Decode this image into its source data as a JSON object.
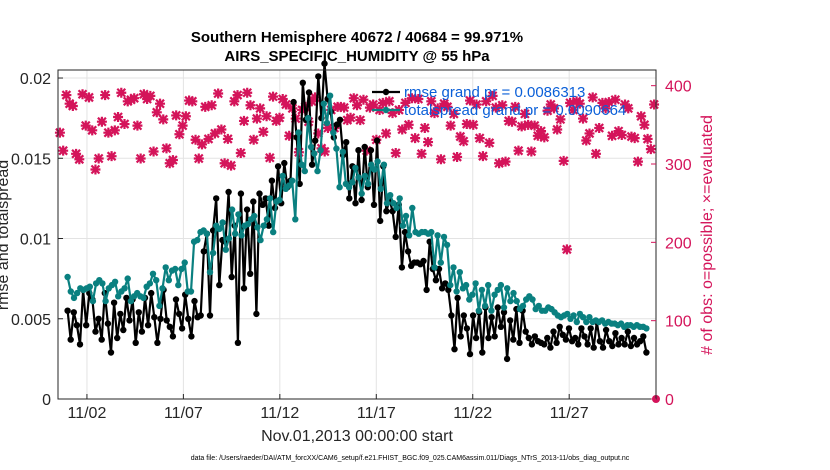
{
  "chart_data": {
    "type": "line",
    "title_line1": "Southern Hemisphere 40672 / 40684 = 99.971%",
    "title_line2": "AIRS_SPECIFIC_HUMIDITY @ 55 hPa",
    "xlabel": "Nov.01,2013 00:00:00 start",
    "ylabel": "rmse and totalspread",
    "y2label": "# of obs: o=possible; ×=evaluated",
    "footer": "data file: /Users/raeder/DAI/ATM_forcXX/CAM6_setup/f.e21.FHIST_BGC.f09_025.CAM6assim.011/Diags_NTrS_2013-11/obs_diag_output.nc",
    "xlim": [
      0.5,
      31.5
    ],
    "ylim": [
      0,
      0.0205
    ],
    "y2lim": [
      0,
      420
    ],
    "x_ticks": [
      {
        "x": 2,
        "label": "11/02"
      },
      {
        "x": 7,
        "label": "11/07"
      },
      {
        "x": 12,
        "label": "11/12"
      },
      {
        "x": 17,
        "label": "11/17"
      },
      {
        "x": 22,
        "label": "11/22"
      },
      {
        "x": 27,
        "label": "11/27"
      }
    ],
    "y_ticks": [
      {
        "v": 0,
        "label": "0"
      },
      {
        "v": 0.005,
        "label": "0.005"
      },
      {
        "v": 0.01,
        "label": "0.01"
      },
      {
        "v": 0.015,
        "label": "0.015"
      },
      {
        "v": 0.02,
        "label": "0.02"
      }
    ],
    "y2_ticks": [
      {
        "v": 0,
        "label": "0"
      },
      {
        "v": 100,
        "label": "100"
      },
      {
        "v": 200,
        "label": "200"
      },
      {
        "v": 300,
        "label": "300"
      },
      {
        "v": 400,
        "label": "400"
      }
    ],
    "series": [
      {
        "name": "rmse",
        "legend": "rmse grand pr = 0.0086313",
        "color": "#000000",
        "values": [
          0.0055,
          0.0037,
          0.0054,
          0.0046,
          0.0034,
          0.0068,
          0.0046,
          0.0066,
          0.0062,
          0.0042,
          0.005,
          0.0037,
          0.0066,
          0.0047,
          0.0029,
          0.006,
          0.0038,
          0.0053,
          0.0043,
          0.0063,
          0.0049,
          0.0062,
          0.0035,
          0.0054,
          0.0042,
          0.0063,
          0.0046,
          0.0066,
          0.0051,
          0.0035,
          0.005,
          0.0068,
          0.0049,
          0.0045,
          0.0039,
          0.0062,
          0.0053,
          0.0044,
          0.0065,
          0.005,
          0.0039,
          0.0061,
          0.0051,
          0.0052,
          0.0092,
          0.0103,
          0.0052,
          0.0105,
          0.0125,
          0.0071,
          0.0099,
          0.0098,
          0.0129,
          0.0076,
          0.0108,
          0.0035,
          0.0128,
          0.0069,
          0.0118,
          0.0078,
          0.0123,
          0.0053,
          0.0128,
          0.0121,
          0.0125,
          0.0108,
          0.0136,
          0.0119,
          0.0145,
          0.0122,
          0.0147,
          0.0132,
          0.0136,
          0.0185,
          0.0163,
          0.0134,
          0.0197,
          0.0174,
          0.0191,
          0.0146,
          0.0161,
          0.0201,
          0.0175,
          0.0209,
          0.0187,
          0.0179,
          0.0163,
          0.0171,
          0.0174,
          0.0152,
          0.016,
          0.0125,
          0.0145,
          0.0122,
          0.0155,
          0.0124,
          0.0157,
          0.0132,
          0.0155,
          0.0121,
          0.0161,
          0.0111,
          0.0145,
          0.0117,
          0.0124,
          0.0117,
          0.0101,
          0.0121,
          0.0082,
          0.0104,
          0.0092,
          0.0083,
          0.0085,
          0.0085,
          0.0084,
          0.0086,
          0.0068,
          0.0098,
          0.0081,
          0.0074,
          0.0081,
          0.0069,
          0.0072,
          0.0068,
          0.0052,
          0.0031,
          0.0063,
          0.0039,
          0.0052,
          0.0044,
          0.0028,
          0.0052,
          0.0038,
          0.0054,
          0.0029,
          0.0057,
          0.0038,
          0.0051,
          0.0039,
          0.0057,
          0.0045,
          0.0054,
          0.0025,
          0.0049,
          0.0037,
          0.0056,
          0.0035,
          0.0055,
          0.0042,
          0.0038,
          0.0034,
          0.0039,
          0.0036,
          0.0035,
          0.0034,
          0.0038,
          0.0032,
          0.0042,
          0.0035,
          0.0045,
          0.004,
          0.0037,
          0.0044,
          0.0036,
          0.0038,
          0.0034,
          0.0044,
          0.0039,
          0.0034,
          0.0044,
          0.0032,
          0.0048,
          0.0036,
          0.0032,
          0.0043,
          0.0036,
          0.0033,
          0.0041,
          0.0034,
          0.0038,
          0.0034,
          0.0042,
          0.0033,
          0.0038,
          0.0034,
          0.0036,
          0.0039,
          0.0029
        ]
      },
      {
        "name": "totalspread",
        "legend": "totalspread grand pr = 0.0090664",
        "color": "#0a8080",
        "values": [
          0.0076,
          0.0067,
          0.0063,
          0.0066,
          0.0069,
          0.0068,
          0.0069,
          0.007,
          0.0061,
          0.0072,
          0.0074,
          0.0072,
          0.0061,
          0.0069,
          0.0071,
          0.0073,
          0.0064,
          0.0067,
          0.0069,
          0.0075,
          0.0061,
          0.0064,
          0.0066,
          0.0064,
          0.0063,
          0.007,
          0.0072,
          0.0078,
          0.0074,
          0.0058,
          0.0069,
          0.0082,
          0.0074,
          0.008,
          0.0081,
          0.0071,
          0.0081,
          0.0085,
          0.0067,
          0.0067,
          0.0098,
          0.0099,
          0.0104,
          0.0105,
          0.0103,
          0.0079,
          0.0091,
          0.0108,
          0.0106,
          0.011,
          0.0093,
          0.01,
          0.0118,
          0.0103,
          0.0115,
          0.0102,
          0.0108,
          0.0109,
          0.0112,
          0.0114,
          0.0107,
          0.0099,
          0.0108,
          0.0112,
          0.0125,
          0.0104,
          0.0123,
          0.0124,
          0.0139,
          0.0131,
          0.0133,
          0.0136,
          0.0112,
          0.0166,
          0.0146,
          0.0142,
          0.0175,
          0.0157,
          0.0153,
          0.0142,
          0.0155,
          0.0184,
          0.0172,
          0.0189,
          0.0166,
          0.0156,
          0.0132,
          0.0154,
          0.0134,
          0.0132,
          0.0135,
          0.0144,
          0.0138,
          0.0128,
          0.0139,
          0.0134,
          0.0146,
          0.0143,
          0.0148,
          0.0131,
          0.0146,
          0.0122,
          0.0127,
          0.0122,
          0.0119,
          0.0125,
          0.0108,
          0.0114,
          0.0102,
          0.0119,
          0.0104,
          0.0103,
          0.0104,
          0.0104,
          0.0103,
          0.0104,
          0.0082,
          0.0102,
          0.0085,
          0.0101,
          0.0096,
          0.0071,
          0.0082,
          0.0067,
          0.0079,
          0.0069,
          0.0071,
          0.0062,
          0.0065,
          0.0072,
          0.0055,
          0.0068,
          0.0058,
          0.0071,
          0.0055,
          0.0065,
          0.0068,
          0.0071,
          0.0057,
          0.0069,
          0.0061,
          0.0066,
          0.0061,
          0.0056,
          0.0058,
          0.0062,
          0.0064,
          0.0062,
          0.0056,
          0.0058,
          0.0055,
          0.0055,
          0.0057,
          0.0056,
          0.0054,
          0.0052,
          0.0051,
          0.0052,
          0.0053,
          0.005,
          0.0052,
          0.0048,
          0.0053,
          0.0051,
          0.0048,
          0.0051,
          0.0048,
          0.0049,
          0.0048,
          0.0049,
          0.0047,
          0.0048,
          0.0047,
          0.0047,
          0.0046,
          0.0047,
          0.0045,
          0.0046,
          0.0046,
          0.0045,
          0.0046,
          0.0045,
          0.0045,
          0.0044
        ]
      }
    ],
    "obs_series": {
      "name": "# of obs",
      "color": "#d4145a",
      "values": [
        340,
        317,
        388,
        377,
        374,
        313,
        306,
        389,
        349,
        385,
        343,
        293,
        307,
        354,
        388,
        340,
        310,
        343,
        360,
        391,
        351,
        380,
        382,
        384,
        349,
        307,
        389,
        383,
        387,
        316,
        366,
        377,
        357,
        320,
        301,
        305,
        362,
        338,
        349,
        361,
        381,
        380,
        331,
        307,
        325,
        373,
        332,
        375,
        339,
        390,
        344,
        301,
        332,
        298,
        380,
        388,
        314,
        355,
        391,
        375,
        331,
        358,
        371,
        341,
        361,
        308,
        386,
        355,
        359,
        383,
        376,
        336,
        371,
        358,
        315,
        369,
        373,
        354,
        380,
        385,
        339,
        320,
        316,
        346,
        369,
        346,
        373,
        373,
        372,
        356,
        359,
        384,
        375,
        356,
        382,
        317,
        372,
        376,
        331,
        369,
        378,
        339,
        380,
        365,
        314,
        369,
        344,
        378,
        350,
        384,
        333,
        383,
        313,
        346,
        328,
        380,
        365,
        371,
        306,
        377,
        373,
        349,
        364,
        309,
        335,
        329,
        351,
        381,
        350,
        376,
        333,
        310,
        380,
        327,
        387,
        372,
        301,
        375,
        303,
        355,
        354,
        373,
        317,
        348,
        364,
        350,
        316,
        349,
        336,
        342,
        334,
        368,
        376,
        371,
        344,
        357,
        304,
        191,
        378,
        369,
        380,
        377,
        358,
        330,
        339,
        385,
        313,
        346,
        378,
        371,
        379,
        336,
        382,
        342,
        337,
        376,
        371,
        335,
        333,
        303,
        361,
        350,
        332,
        319,
        376
      ]
    },
    "end_obs_marker": {
      "x": 31.5,
      "v": 0
    }
  }
}
